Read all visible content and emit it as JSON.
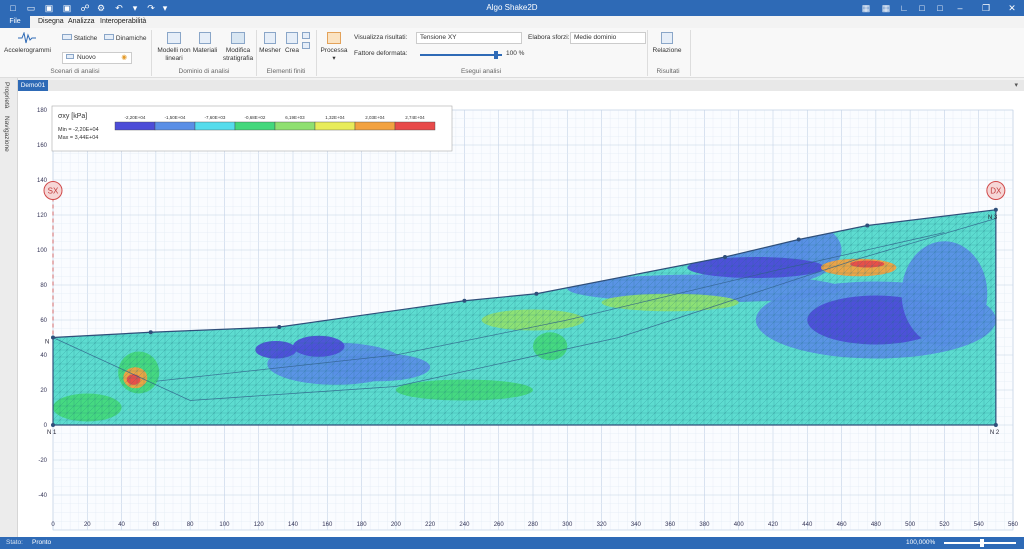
{
  "app": {
    "title": "Algo Shake2D"
  },
  "menu": {
    "file": "File",
    "items": [
      "Disegna",
      "Analizza",
      "Interoperabilità"
    ]
  },
  "ribbon": {
    "accelerogrammi": "Accelerogrammi",
    "statiche": "Statiche",
    "dinamiche": "Dinamiche",
    "nuovo": "Nuovo",
    "scenari_label": "Scenari di analisi",
    "modelli_non_lineari": "Modelli non lineari",
    "materiali": "Materiali",
    "modifica_stratigrafia": "Modifica stratigrafia",
    "dominio_label": "Dominio di analisi",
    "mesher": "Mesher",
    "crea": "Crea",
    "elementi_label": "Elementi finiti",
    "processa": "Processa",
    "visualizza_label": "Visualizza risultati:",
    "visualizza_value": "Tensione XY",
    "elabora_label": "Elabora sforzi:",
    "elabora_value": "Medie dominio",
    "fattore_label": "Fattore deformata:",
    "fattore_value": 0.93,
    "fattore_text": "100 %",
    "esegui_label": "Esegui analisi",
    "relazione": "Relazione",
    "risultati_label": "Risultati"
  },
  "side": {
    "proprieta": "Proprietà",
    "navigazione": "Navigazione"
  },
  "doc_tab": "Demo01",
  "legend": {
    "title": "σxy [kPa]",
    "min": "Min = -2,20E+04",
    "max": "Max = 3,44E+04",
    "ticks": [
      "-2,20E+04",
      "-1,50E+04",
      "-7,60E+03",
      "-0,68E+02",
      "6,19E+03",
      "1,32E+04",
      "2,03E+04",
      "2,74E+04"
    ],
    "colors": [
      "#4d4dd8",
      "#5a8fe6",
      "#55dcec",
      "#43d87c",
      "#8fe070",
      "#e8ec5a",
      "#f2a240",
      "#e84a4a"
    ]
  },
  "markers": {
    "sx": "SX",
    "dx": "DX"
  },
  "nodes": {
    "n1": "N 1",
    "n2": "N 2",
    "n3": "N 3",
    "ns": "N"
  },
  "chart_data": {
    "type": "contour",
    "xlim": [
      0,
      560
    ],
    "ylim": [
      -60,
      180
    ],
    "xticks": [
      0,
      20,
      40,
      60,
      80,
      100,
      120,
      140,
      160,
      180,
      200,
      220,
      240,
      260,
      280,
      300,
      320,
      340,
      360,
      380,
      400,
      420,
      440,
      460,
      480,
      500,
      520,
      540,
      560
    ],
    "yticks": [
      -40,
      -20,
      0,
      20,
      40,
      60,
      80,
      100,
      120,
      140,
      160,
      180
    ],
    "profile_x": [
      0,
      57,
      132,
      240,
      282,
      392,
      435,
      475,
      550
    ],
    "profile_y": [
      50,
      53,
      56,
      71,
      75,
      96,
      106,
      114,
      123
    ]
  },
  "status": {
    "label": "Stato:",
    "value": "Pronto",
    "zoom": "100,000%"
  }
}
